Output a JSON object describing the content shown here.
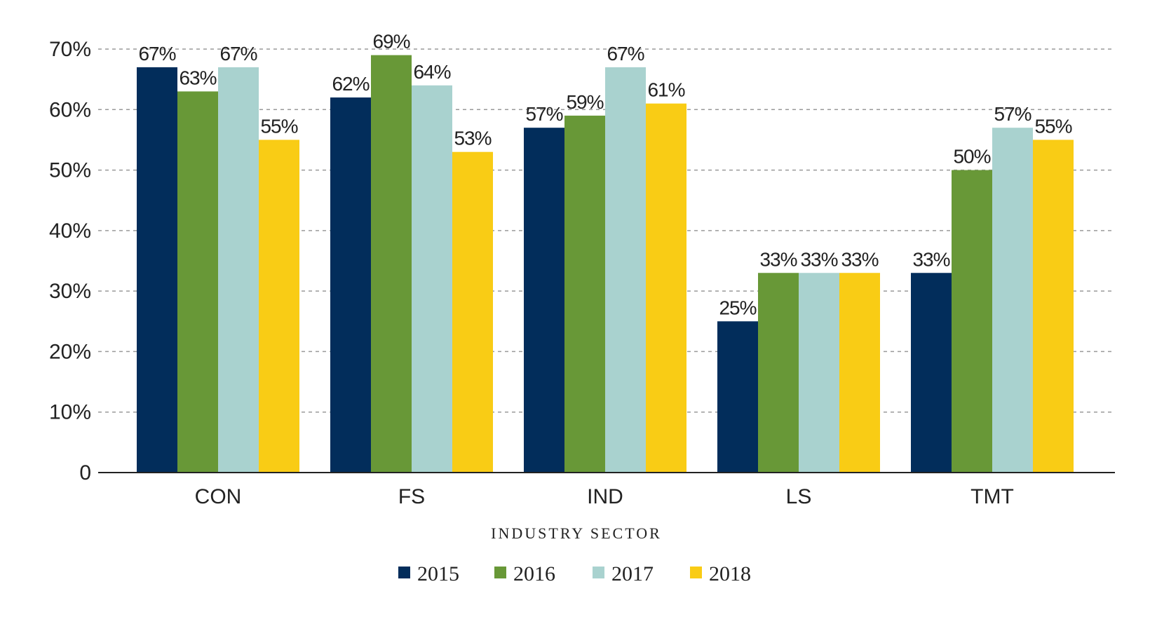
{
  "chart_data": {
    "type": "bar",
    "categories": [
      "CON",
      "FS",
      "IND",
      "LS",
      "TMT"
    ],
    "series": [
      {
        "name": "2015",
        "color": "#022d5b",
        "values": [
          67,
          62,
          57,
          25,
          33
        ]
      },
      {
        "name": "2016",
        "color": "#689837",
        "values": [
          63,
          69,
          59,
          33,
          50
        ]
      },
      {
        "name": "2017",
        "color": "#a9d2cf",
        "values": [
          67,
          64,
          67,
          33,
          57
        ]
      },
      {
        "name": "2018",
        "color": "#f9cc15",
        "values": [
          55,
          53,
          61,
          33,
          55
        ]
      }
    ],
    "data_labels": [
      [
        "67%",
        "62%",
        "57%",
        "25%",
        "33%"
      ],
      [
        "63%",
        "69%",
        "59%",
        "33%",
        "50%"
      ],
      [
        "67%",
        "64%",
        "67%",
        "33%",
        "57%"
      ],
      [
        "55%",
        "53%",
        "61%",
        "33%",
        "55%"
      ]
    ],
    "y_ticks": [
      0,
      10,
      20,
      30,
      40,
      50,
      60,
      70
    ],
    "y_tick_labels": [
      "0",
      "10%",
      "20%",
      "30%",
      "40%",
      "50%",
      "60%",
      "70%"
    ],
    "ylim": [
      0,
      70
    ],
    "xlabel": "INDUSTRY SECTOR",
    "ylabel": "",
    "title": "",
    "grid": true,
    "legend_position": "bottom-center"
  }
}
